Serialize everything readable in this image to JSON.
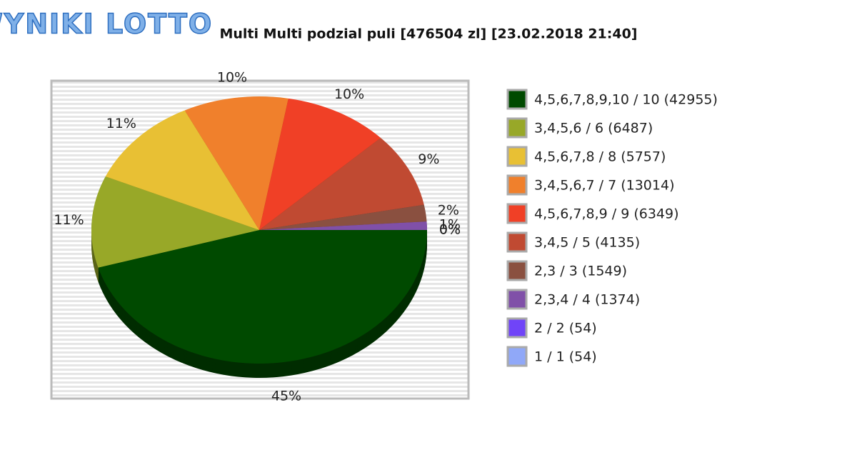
{
  "logo": "WYNIKI LOTTO",
  "chart_data": {
    "type": "pie",
    "title": "Multi Multi podzial puli [476504 zl] [23.02.2018 21:40]",
    "categories": [
      "4,5,6,7,8,9,10 / 10 (42955)",
      "3,4,5,6 / 6 (6487)",
      "4,5,6,7,8 / 8 (5757)",
      "3,4,5,6,7 / 7 (13014)",
      "4,5,6,7,8,9 / 9 (6349)",
      "3,4,5 / 5 (4135)",
      "2,3 / 3 (1549)",
      "2,3,4 / 4 (1374)",
      "2 / 2 (54)",
      "1 / 1 (54)"
    ],
    "values": [
      45,
      11,
      11,
      10,
      10,
      9,
      2,
      1,
      0,
      0
    ],
    "value_labels": [
      "45%",
      "11%",
      "11%",
      "10%",
      "10%",
      "9%",
      "2%",
      "1%",
      "0%",
      "0%"
    ],
    "colors": [
      "#004a00",
      "#98a828",
      "#e8c034",
      "#f0802c",
      "#f04026",
      "#c04a32",
      "#8a5040",
      "#8050a8",
      "#7044f8",
      "#90a8f8"
    ],
    "legend": "right"
  }
}
